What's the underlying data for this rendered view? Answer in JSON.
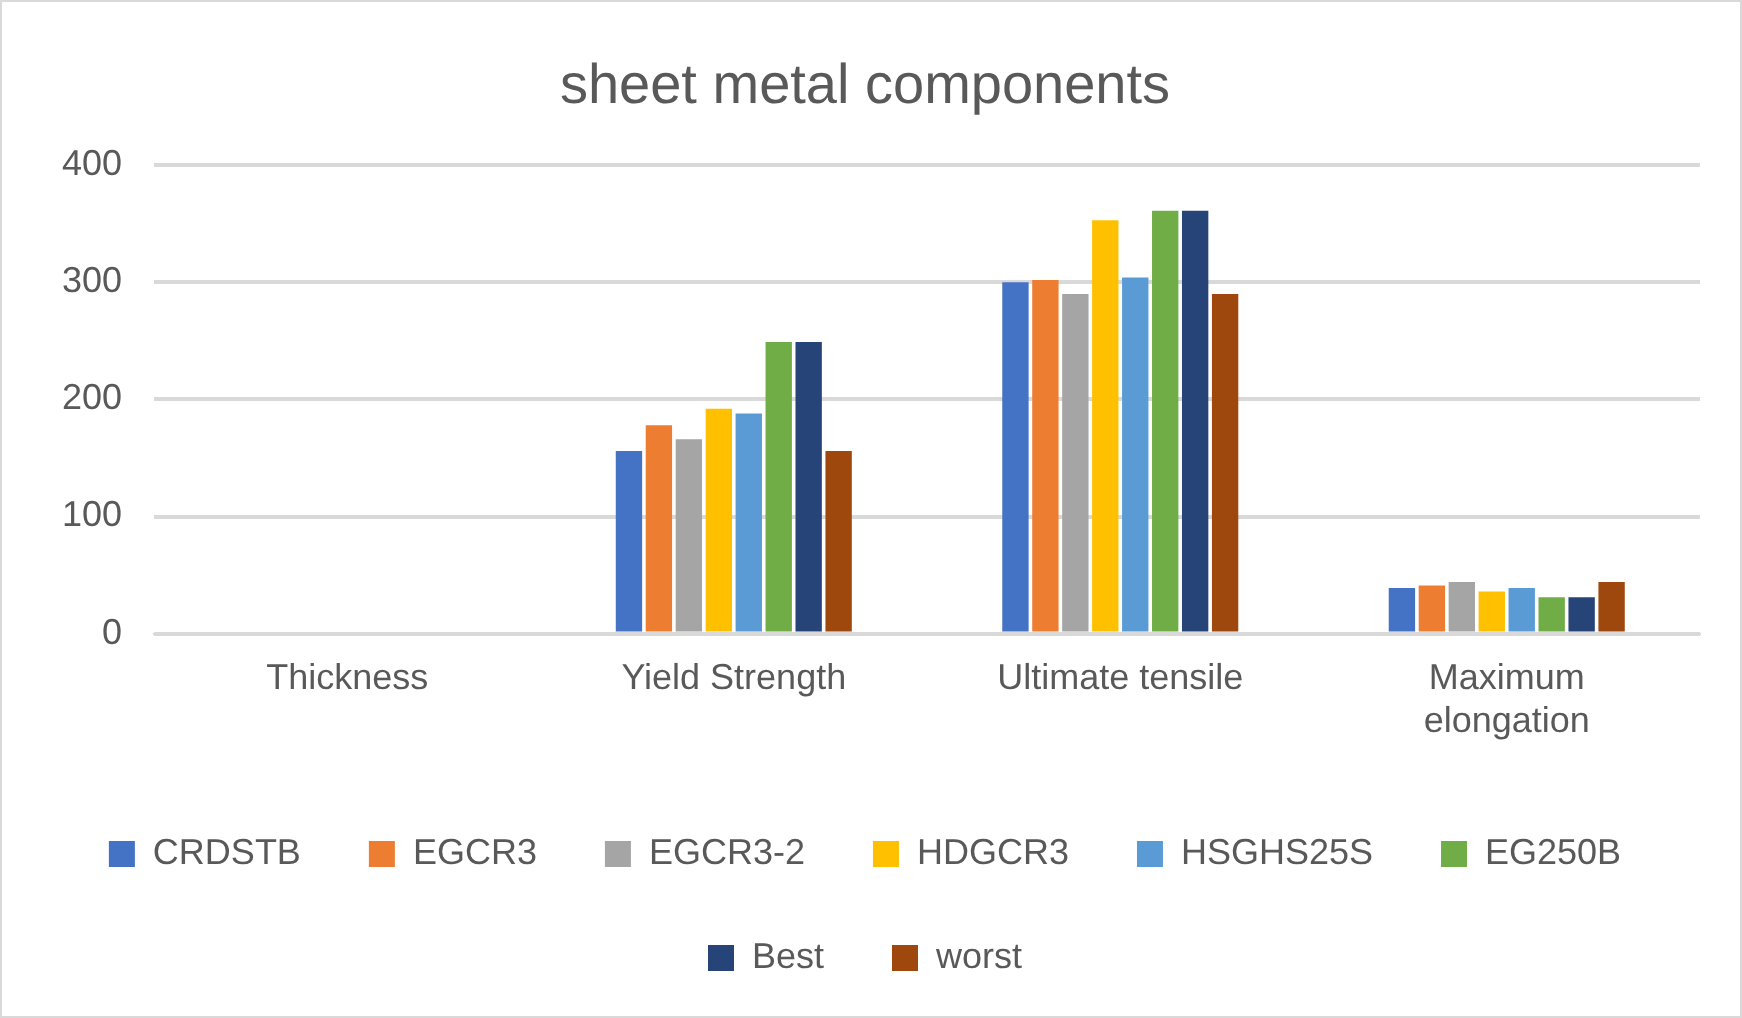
{
  "chart_data": {
    "type": "bar",
    "title": "sheet metal components",
    "categories": [
      "Thickness",
      "Yield Strength",
      "Ultimate tensile",
      "Maximum elongation"
    ],
    "series": [
      {
        "name": "CRDSTB",
        "color": "#4472c4",
        "values": [
          null,
          156,
          300,
          39
        ]
      },
      {
        "name": "EGCR3",
        "color": "#ed7d31",
        "values": [
          null,
          178,
          302,
          41
        ]
      },
      {
        "name": "EGCR3-2",
        "color": "#a5a5a5",
        "values": [
          null,
          166,
          290,
          44
        ]
      },
      {
        "name": "HDGCR3",
        "color": "#ffc000",
        "values": [
          null,
          192,
          353,
          36
        ]
      },
      {
        "name": "HSGHS25S",
        "color": "#5b9bd5",
        "values": [
          null,
          188,
          304,
          39
        ]
      },
      {
        "name": "EG250B",
        "color": "#70ad47",
        "values": [
          null,
          249,
          361,
          31
        ]
      },
      {
        "name": "Best",
        "color": "#264478",
        "values": [
          null,
          249,
          361,
          31
        ]
      },
      {
        "name": "worst",
        "color": "#9e480e",
        "values": [
          null,
          156,
          290,
          44
        ]
      }
    ],
    "ylim": [
      0,
      400
    ],
    "yticks": [
      0,
      100,
      200,
      300,
      400
    ],
    "grid": "y",
    "legend": "bottom"
  }
}
